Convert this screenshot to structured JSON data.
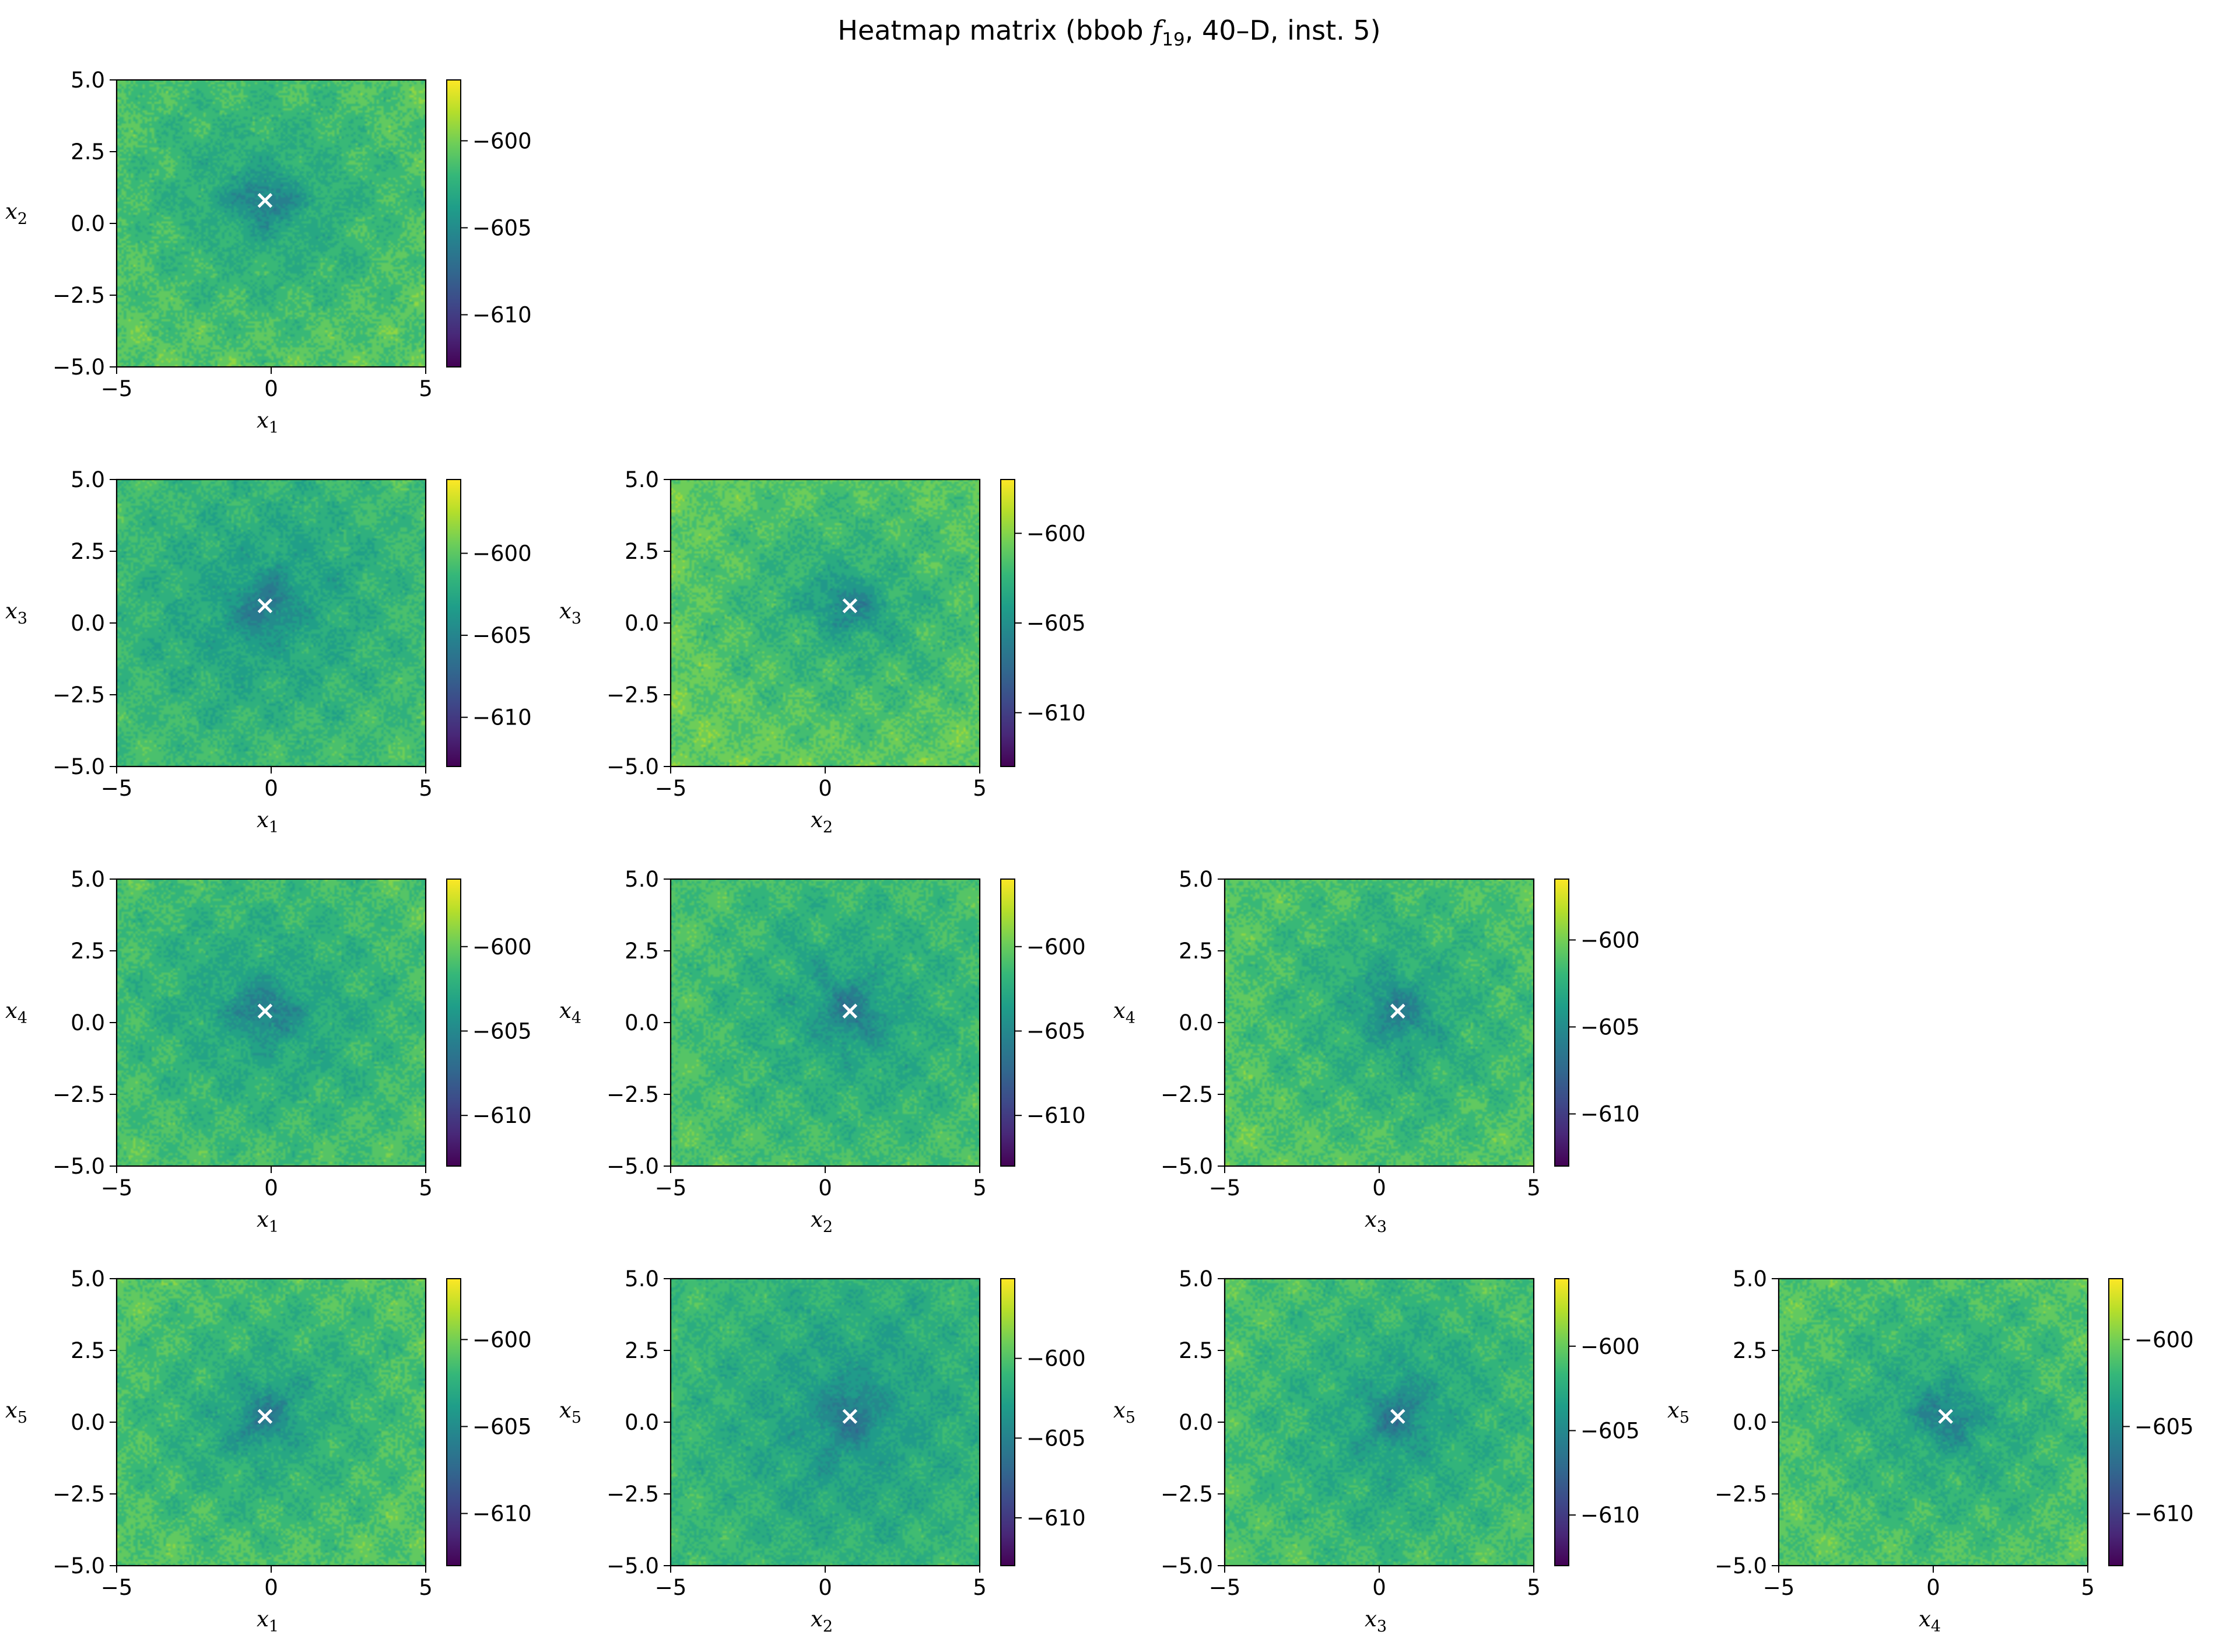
{
  "figure": {
    "title_prefix": "Heatmap matrix (bbob ",
    "title_func": "f",
    "title_func_sub": "19",
    "title_suffix": ", 40–D, inst. 5)"
  },
  "colormap": {
    "name": "viridis",
    "stops": [
      "#440154",
      "#482878",
      "#3e4989",
      "#31688e",
      "#26828e",
      "#1f9e89",
      "#35b779",
      "#6ece58",
      "#b5de2b",
      "#fde725"
    ]
  },
  "chart_data": {
    "type": "heatmap",
    "layout": "lower-triangular pair matrix",
    "marker": {
      "symbol": "x",
      "color": "#ffffff"
    },
    "grid": false,
    "panels": [
      {
        "row": 0,
        "col": 0,
        "x_var": "x",
        "x_sub": "1",
        "y_var": "x",
        "y_sub": "2",
        "xlim": [
          -5,
          5
        ],
        "ylim": [
          -5,
          5
        ],
        "xticks": [
          "−5",
          "0",
          "5"
        ],
        "yticks": [
          "5.0",
          "2.5",
          "0.0",
          "−2.5",
          "−5.0"
        ],
        "optimum": [
          -0.2,
          0.8
        ],
        "colorbar": {
          "range": [
            -613,
            -596.5
          ],
          "ticks": [
            "−600",
            "−605",
            "−610"
          ],
          "tick_values": [
            -600,
            -605,
            -610
          ]
        }
      },
      {
        "row": 1,
        "col": 0,
        "x_var": "x",
        "x_sub": "1",
        "y_var": "x",
        "y_sub": "3",
        "xlim": [
          -5,
          5
        ],
        "ylim": [
          -5,
          5
        ],
        "xticks": [
          "−5",
          "0",
          "5"
        ],
        "yticks": [
          "5.0",
          "2.5",
          "0.0",
          "−2.5",
          "−5.0"
        ],
        "optimum": [
          -0.2,
          0.6
        ],
        "colorbar": {
          "range": [
            -613,
            -595.5
          ],
          "ticks": [
            "−600",
            "−605",
            "−610"
          ],
          "tick_values": [
            -600,
            -605,
            -610
          ]
        }
      },
      {
        "row": 1,
        "col": 1,
        "x_var": "x",
        "x_sub": "2",
        "y_var": "x",
        "y_sub": "3",
        "xlim": [
          -5,
          5
        ],
        "ylim": [
          -5,
          5
        ],
        "xticks": [
          "−5",
          "0",
          "5"
        ],
        "yticks": [
          "5.0",
          "2.5",
          "0.0",
          "−2.5",
          "−5.0"
        ],
        "optimum": [
          0.8,
          0.6
        ],
        "colorbar": {
          "range": [
            -613,
            -597
          ],
          "ticks": [
            "−600",
            "−605",
            "−610"
          ],
          "tick_values": [
            -600,
            -605,
            -610
          ]
        }
      },
      {
        "row": 2,
        "col": 0,
        "x_var": "x",
        "x_sub": "1",
        "y_var": "x",
        "y_sub": "4",
        "xlim": [
          -5,
          5
        ],
        "ylim": [
          -5,
          5
        ],
        "xticks": [
          "−5",
          "0",
          "5"
        ],
        "yticks": [
          "5.0",
          "2.5",
          "0.0",
          "−2.5",
          "−5.0"
        ],
        "optimum": [
          -0.2,
          0.4
        ],
        "colorbar": {
          "range": [
            -613,
            -596
          ],
          "ticks": [
            "−600",
            "−605",
            "−610"
          ],
          "tick_values": [
            -600,
            -605,
            -610
          ]
        }
      },
      {
        "row": 2,
        "col": 1,
        "x_var": "x",
        "x_sub": "2",
        "y_var": "x",
        "y_sub": "4",
        "xlim": [
          -5,
          5
        ],
        "ylim": [
          -5,
          5
        ],
        "xticks": [
          "−5",
          "0",
          "5"
        ],
        "yticks": [
          "5.0",
          "2.5",
          "0.0",
          "−2.5",
          "−5.0"
        ],
        "optimum": [
          0.8,
          0.4
        ],
        "colorbar": {
          "range": [
            -613,
            -596
          ],
          "ticks": [
            "−600",
            "−605",
            "−610"
          ],
          "tick_values": [
            -600,
            -605,
            -610
          ]
        }
      },
      {
        "row": 2,
        "col": 2,
        "x_var": "x",
        "x_sub": "3",
        "y_var": "x",
        "y_sub": "4",
        "xlim": [
          -5,
          5
        ],
        "ylim": [
          -5,
          5
        ],
        "xticks": [
          "−5",
          "0",
          "5"
        ],
        "yticks": [
          "5.0",
          "2.5",
          "0.0",
          "−2.5",
          "−5.0"
        ],
        "optimum": [
          0.6,
          0.4
        ],
        "colorbar": {
          "range": [
            -613,
            -596.5
          ],
          "ticks": [
            "−600",
            "−605",
            "−610"
          ],
          "tick_values": [
            -600,
            -605,
            -610
          ]
        }
      },
      {
        "row": 3,
        "col": 0,
        "x_var": "x",
        "x_sub": "1",
        "y_var": "x",
        "y_sub": "5",
        "xlim": [
          -5,
          5
        ],
        "ylim": [
          -5,
          5
        ],
        "xticks": [
          "−5",
          "0",
          "5"
        ],
        "yticks": [
          "5.0",
          "2.5",
          "0.0",
          "−2.5",
          "−5.0"
        ],
        "optimum": [
          -0.2,
          0.2
        ],
        "colorbar": {
          "range": [
            -613,
            -596.5
          ],
          "ticks": [
            "−600",
            "−605",
            "−610"
          ],
          "tick_values": [
            -600,
            -605,
            -610
          ]
        }
      },
      {
        "row": 3,
        "col": 1,
        "x_var": "x",
        "x_sub": "2",
        "y_var": "x",
        "y_sub": "5",
        "xlim": [
          -5,
          5
        ],
        "ylim": [
          -5,
          5
        ],
        "xticks": [
          "−5",
          "0",
          "5"
        ],
        "yticks": [
          "5.0",
          "2.5",
          "0.0",
          "−2.5",
          "−5.0"
        ],
        "optimum": [
          0.8,
          0.2
        ],
        "colorbar": {
          "range": [
            -613,
            -595
          ],
          "ticks": [
            "−600",
            "−605",
            "−610"
          ],
          "tick_values": [
            -600,
            -605,
            -610
          ]
        }
      },
      {
        "row": 3,
        "col": 2,
        "x_var": "x",
        "x_sub": "3",
        "y_var": "x",
        "y_sub": "5",
        "xlim": [
          -5,
          5
        ],
        "ylim": [
          -5,
          5
        ],
        "xticks": [
          "−5",
          "0",
          "5"
        ],
        "yticks": [
          "5.0",
          "2.5",
          "0.0",
          "−2.5",
          "−5.0"
        ],
        "optimum": [
          0.6,
          0.2
        ],
        "colorbar": {
          "range": [
            -613,
            -596
          ],
          "ticks": [
            "−600",
            "−605",
            "−610"
          ],
          "tick_values": [
            -600,
            -605,
            -610
          ]
        }
      },
      {
        "row": 3,
        "col": 3,
        "x_var": "x",
        "x_sub": "4",
        "y_var": "x",
        "y_sub": "5",
        "xlim": [
          -5,
          5
        ],
        "ylim": [
          -5,
          5
        ],
        "xticks": [
          "−5",
          "0",
          "5"
        ],
        "yticks": [
          "5.0",
          "2.5",
          "0.0",
          "−2.5",
          "−5.0"
        ],
        "optimum": [
          0.4,
          0.2
        ],
        "colorbar": {
          "range": [
            -613,
            -596.5
          ],
          "ticks": [
            "−600",
            "−605",
            "−610"
          ],
          "tick_values": [
            -600,
            -605,
            -610
          ]
        }
      }
    ]
  }
}
